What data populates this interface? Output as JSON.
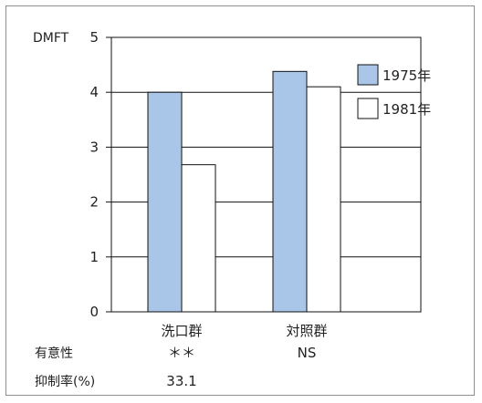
{
  "chart_data": {
    "type": "bar",
    "ylabel": "DMFT",
    "ylim": [
      0,
      5
    ],
    "yticks": [
      0,
      1,
      2,
      3,
      4,
      5
    ],
    "grid": true,
    "legend_position": "top-right",
    "categories": [
      "洗口群",
      "対照群"
    ],
    "series": [
      {
        "name": "1975年",
        "values": [
          4.0,
          4.38
        ],
        "color": "#a9c6e8"
      },
      {
        "name": "1981年",
        "values": [
          2.68,
          4.1
        ],
        "color": "#ffffff"
      }
    ]
  },
  "stats": {
    "significance_label": "有意性",
    "inhibition_label": "抑制率(%)",
    "significance": [
      "＊＊",
      "NS"
    ],
    "inhibition": [
      "33.1",
      ""
    ]
  }
}
